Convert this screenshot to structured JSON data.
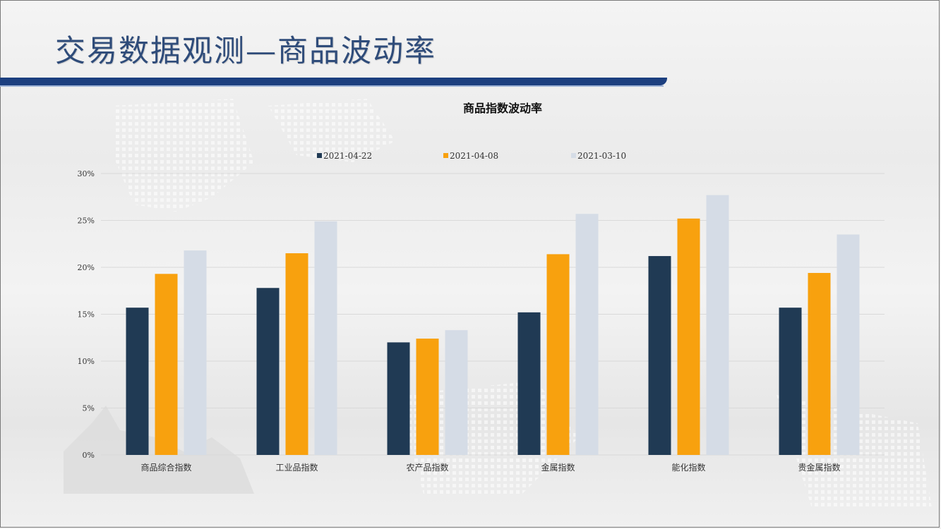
{
  "slide": {
    "title": "交易数据观测—商品波动率"
  },
  "colors": {
    "title": "#2f4c7a",
    "band": "#1c3f7f",
    "series": [
      "#203a54",
      "#f8a10e",
      "#d5dce6"
    ],
    "grid": "#d9d9d9",
    "text": "#333333"
  },
  "chart_data": {
    "type": "bar",
    "title": "商品指数波动率",
    "categories": [
      "商品综合指数",
      "工业品指数",
      "农产品指数",
      "金属指数",
      "能化指数",
      "贵金属指数"
    ],
    "series": [
      {
        "name": "2021-04-22",
        "values": [
          15.7,
          17.8,
          12.0,
          15.2,
          21.2,
          15.7
        ]
      },
      {
        "name": "2021-04-08",
        "values": [
          19.3,
          21.5,
          12.4,
          21.4,
          25.2,
          19.4
        ]
      },
      {
        "name": "2021-03-10",
        "values": [
          21.8,
          24.9,
          13.3,
          25.7,
          27.7,
          23.5
        ]
      }
    ],
    "yticks": [
      "0%",
      "5%",
      "10%",
      "15%",
      "20%",
      "25%",
      "30%"
    ],
    "ylim": [
      0,
      30
    ],
    "grid": true,
    "legend_position": "top"
  }
}
